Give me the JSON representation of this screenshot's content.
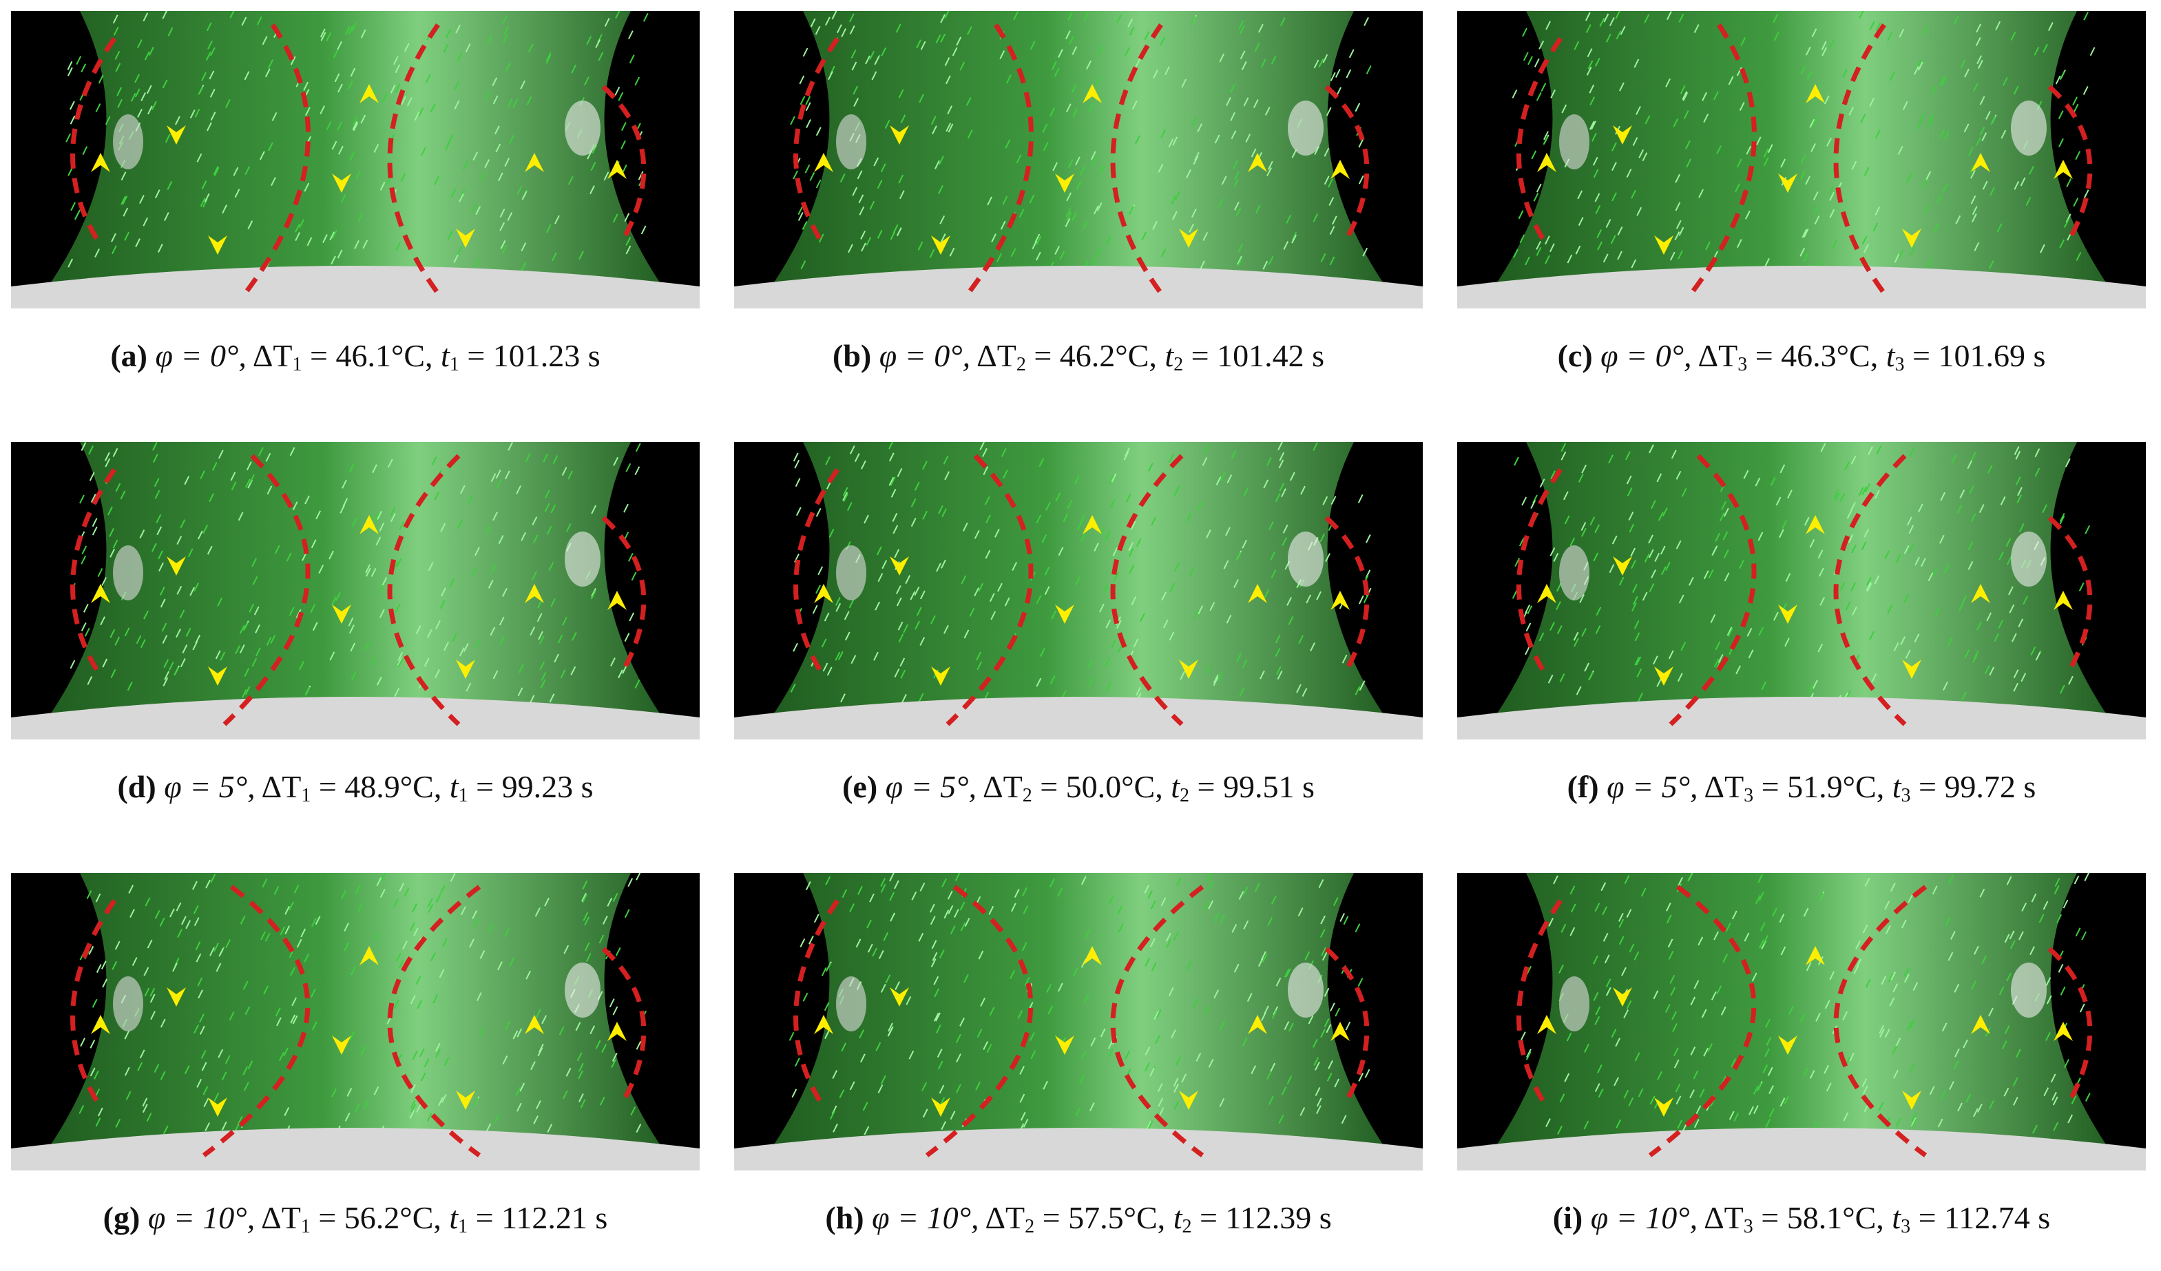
{
  "panels": [
    {
      "label": "(a)",
      "angle": "φ = 0°,",
      "dsym": "ΔT",
      "dsub": "1",
      "dval": "= 46.1°C,",
      "tsym": "t",
      "tsub": "1",
      "tval": "= 101.23 s"
    },
    {
      "label": "(b)",
      "angle": "φ = 0°,",
      "dsym": "ΔT",
      "dsub": "2",
      "dval": "= 46.2°C,",
      "tsym": "t",
      "tsub": "2",
      "tval": "= 101.42 s"
    },
    {
      "label": "(c)",
      "angle": "φ = 0°,",
      "dsym": "ΔT",
      "dsub": "3",
      "dval": "= 46.3°C,",
      "tsym": "t",
      "tsub": "3",
      "tval": "= 101.69 s"
    },
    {
      "label": "(d)",
      "angle": "φ = 5°,",
      "dsym": "ΔT",
      "dsub": "1",
      "dval": "= 48.9°C,",
      "tsym": "t",
      "tsub": "1",
      "tval": "= 99.23 s"
    },
    {
      "label": "(e)",
      "angle": "φ = 5°,",
      "dsym": "ΔT",
      "dsub": "2",
      "dval": "= 50.0°C,",
      "tsym": "t",
      "tsub": "2",
      "tval": "= 99.51 s"
    },
    {
      "label": "(f)",
      "angle": "φ = 5°,",
      "dsym": "ΔT",
      "dsub": "3",
      "dval": "= 51.9°C,",
      "tsym": "t",
      "tsub": "3",
      "tval": "= 99.72 s"
    },
    {
      "label": "(g)",
      "angle": "φ = 10°,",
      "dsym": "ΔT",
      "dsub": "1",
      "dval": "= 56.2°C,",
      "tsym": "t",
      "tsub": "1",
      "tval": "= 112.21 s"
    },
    {
      "label": "(h)",
      "angle": "φ = 10°,",
      "dsym": "ΔT",
      "dsub": "2",
      "dval": "= 57.5°C,",
      "tsym": "t",
      "tsub": "2",
      "tval": "= 112.39 s"
    },
    {
      "label": "(i)",
      "angle": "φ = 10°,",
      "dsym": "ΔT",
      "dsub": "3",
      "dval": "= 58.1°C,",
      "tsym": "t",
      "tsub": "3",
      "tval": "= 112.74 s"
    }
  ]
}
